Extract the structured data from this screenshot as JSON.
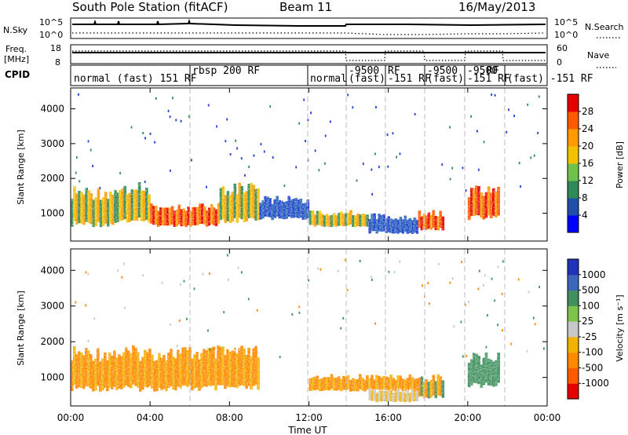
{
  "header": {
    "title": "South Pole Station (fitACF)",
    "beam": "Beam 11",
    "date": "16/May/2013"
  },
  "noise_panel": {
    "left_label": "N.Sky",
    "left_ticks": [
      "10^5",
      "10^0"
    ],
    "right_ticks": [
      "10^5",
      "10^0"
    ],
    "right_label": "N.Search"
  },
  "freq_panel": {
    "left_label_1": "Freq.",
    "left_label_2": "[MHz]",
    "left_ticks": [
      "18",
      "8"
    ],
    "right_ticks": [
      "60",
      "0"
    ],
    "right_label": "Nave"
  },
  "cpid_panel": {
    "label": "CPID",
    "segments": [
      "normal (fast) 151 RF",
      "rbsp 200 RF",
      "normal",
      "-9500",
      "RF",
      "(fast)",
      "-151 RF",
      "-9500",
      "-9500",
      "RF",
      "(fast)",
      "-151 RF",
      "(fast)  -151 RF"
    ]
  },
  "chart_data": [
    {
      "type": "heatmap",
      "panel": "power",
      "ylabel": "Slant Range [km]",
      "y_ticks": [
        "1000",
        "2000",
        "3000",
        "4000"
      ],
      "ylim": [
        200,
        4600
      ],
      "xlim": [
        "00:00",
        "24:00"
      ],
      "colorbar_label": "Power [dB]",
      "colorbar_ticks": [
        "4",
        "8",
        "12",
        "16",
        "20",
        "24",
        "28"
      ],
      "colorbar_colors": [
        "#0000ff",
        "#1f4faa",
        "#2e8b57",
        "#6fc24a",
        "#f2c200",
        "#ff9a00",
        "#ff5a00",
        "#e60000"
      ],
      "echo_regions": [
        {
          "t": [
            0.0,
            2.3
          ],
          "range": [
            600,
            1800
          ],
          "value": "moderate"
        },
        {
          "t": [
            2.3,
            4.0
          ],
          "range": [
            700,
            1900
          ],
          "value": "moderate"
        },
        {
          "t": [
            4.0,
            7.5
          ],
          "range": [
            600,
            1300
          ],
          "value": "strong"
        },
        {
          "t": [
            7.5,
            9.5
          ],
          "range": [
            700,
            1900
          ],
          "value": "moderate"
        },
        {
          "t": [
            9.5,
            12.0
          ],
          "range": [
            800,
            1500
          ],
          "value": "weak"
        },
        {
          "t": [
            12.0,
            15.0
          ],
          "range": [
            600,
            1100
          ],
          "value": "moderate"
        },
        {
          "t": [
            15.0,
            17.5
          ],
          "range": [
            400,
            1000
          ],
          "value": "weak"
        },
        {
          "t": [
            17.5,
            18.8
          ],
          "range": [
            500,
            1100
          ],
          "value": "strong"
        },
        {
          "t": [
            20.0,
            21.6
          ],
          "range": [
            800,
            1800
          ],
          "value": "strong"
        }
      ]
    },
    {
      "type": "heatmap",
      "panel": "velocity",
      "ylabel": "Slant Range [km]",
      "y_ticks": [
        "1000",
        "2000",
        "3000",
        "4000"
      ],
      "ylim": [
        200,
        4600
      ],
      "xlim": [
        "00:00",
        "24:00"
      ],
      "x_ticks": [
        "00:00",
        "04:00",
        "08:00",
        "12:00",
        "16:00",
        "20:00",
        "00:00"
      ],
      "xlabel": "Time UT",
      "colorbar_label": "Velocity [m s⁻¹]",
      "colorbar_ticks": [
        "1000",
        "500",
        "100",
        "25",
        "-25",
        "-100",
        "-500",
        "-1000"
      ],
      "colorbar_colors": [
        "#2233bb",
        "#3b66bb",
        "#3f8f5f",
        "#7cc44a",
        "#c8c8c8",
        "#f2b200",
        "#ff8a00",
        "#ff5a00",
        "#e60000"
      ],
      "echo_regions": [
        {
          "t": [
            0.0,
            9.5
          ],
          "range": [
            600,
            1900
          ],
          "value": "-100 to -500"
        },
        {
          "t": [
            12.0,
            17.5
          ],
          "range": [
            600,
            1100
          ],
          "value": "-100 to -500"
        },
        {
          "t": [
            15.0,
            17.5
          ],
          "range": [
            300,
            700
          ],
          "value": "-25 to 25"
        },
        {
          "t": [
            17.5,
            18.8
          ],
          "range": [
            400,
            1100
          ],
          "value": "mixed"
        },
        {
          "t": [
            20.0,
            21.6
          ],
          "range": [
            700,
            1700
          ],
          "value": "100 to 500"
        }
      ]
    }
  ]
}
